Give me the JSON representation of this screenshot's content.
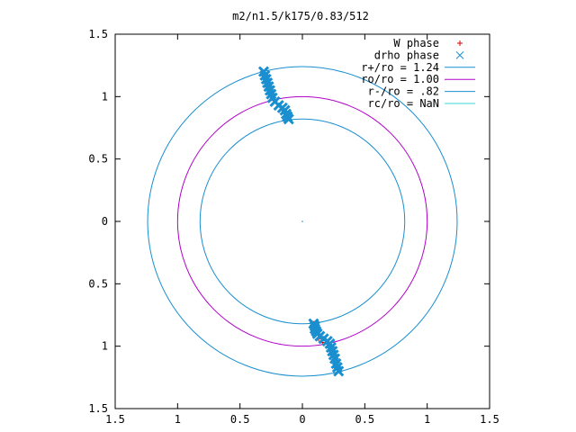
{
  "chart_data": {
    "type": "scatter",
    "title": "m2/n1.5/k175/0.83/512",
    "xlim": [
      -1.5,
      1.5
    ],
    "ylim": [
      -1.5,
      1.5
    ],
    "x_ticks": [
      {
        "value": -1.5,
        "label": "1.5"
      },
      {
        "value": -1,
        "label": "1"
      },
      {
        "value": -0.5,
        "label": "0.5"
      },
      {
        "value": 0,
        "label": "0"
      },
      {
        "value": 0.5,
        "label": "0.5"
      },
      {
        "value": 1,
        "label": "1"
      },
      {
        "value": 1.5,
        "label": "1.5"
      }
    ],
    "y_ticks": [
      {
        "value": 1.5,
        "label": "1.5"
      },
      {
        "value": 1,
        "label": "1"
      },
      {
        "value": 0.5,
        "label": "0.5"
      },
      {
        "value": 0,
        "label": "0"
      },
      {
        "value": -0.5,
        "label": "0.5"
      },
      {
        "value": -1,
        "label": "1"
      },
      {
        "value": -1.5,
        "label": "1.5"
      }
    ],
    "grid": false,
    "legend_position": "top-right",
    "circles": [
      {
        "name": "r+/ro = 1.24",
        "radius": 1.24,
        "color": "#1a8fd0"
      },
      {
        "name": "ro/ro = 1.00",
        "radius": 1.0,
        "color": "#b000c8"
      },
      {
        "name": "r-/ro = .82",
        "radius": 0.82,
        "color": "#1a8fd0"
      },
      {
        "name": "rc/ro = NaN",
        "radius": null,
        "color": "#38d8d8"
      }
    ],
    "series": [
      {
        "name": "W phase",
        "marker": "+",
        "color": "#e00000",
        "points": [
          [
            0.09,
            -0.82
          ],
          [
            0.1,
            -0.85
          ],
          [
            0.11,
            -0.9
          ],
          [
            0.13,
            -0.94
          ],
          [
            0.16,
            -0.97
          ]
        ]
      },
      {
        "name": "drho phase",
        "marker": "x",
        "color": "#1a8fd0",
        "points": [
          [
            -0.31,
            1.2
          ],
          [
            -0.3,
            1.17
          ],
          [
            -0.29,
            1.14
          ],
          [
            -0.28,
            1.11
          ],
          [
            -0.27,
            1.08
          ],
          [
            -0.26,
            1.05
          ],
          [
            -0.25,
            1.02
          ],
          [
            -0.24,
            0.99
          ],
          [
            -0.22,
            0.96
          ],
          [
            -0.19,
            0.93
          ],
          [
            -0.16,
            0.91
          ],
          [
            -0.14,
            0.89
          ],
          [
            -0.13,
            0.86
          ],
          [
            -0.12,
            0.84
          ],
          [
            -0.11,
            0.82
          ],
          [
            0.09,
            -0.82
          ],
          [
            0.1,
            -0.84
          ],
          [
            0.1,
            -0.86
          ],
          [
            0.11,
            -0.88
          ],
          [
            0.12,
            -0.9
          ],
          [
            0.14,
            -0.92
          ],
          [
            0.17,
            -0.94
          ],
          [
            0.2,
            -0.96
          ],
          [
            0.22,
            -0.98
          ],
          [
            0.23,
            -1.01
          ],
          [
            0.24,
            -1.04
          ],
          [
            0.25,
            -1.07
          ],
          [
            0.26,
            -1.1
          ],
          [
            0.27,
            -1.14
          ],
          [
            0.28,
            -1.17
          ],
          [
            0.29,
            -1.2
          ]
        ]
      }
    ],
    "origin_marker": [
      0,
      0
    ]
  }
}
